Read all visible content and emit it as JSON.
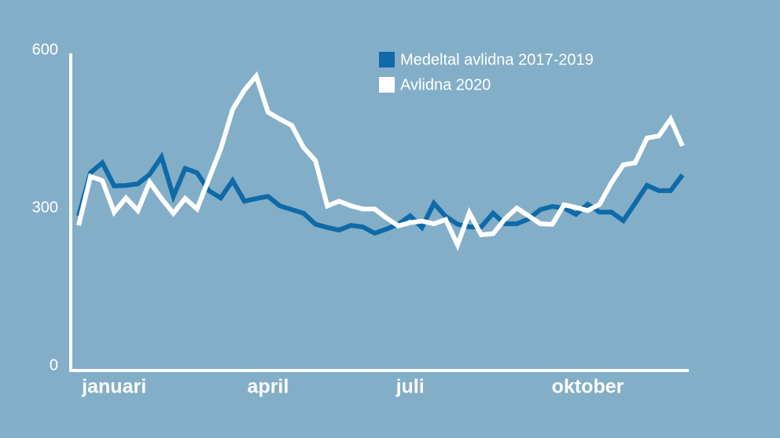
{
  "chart_data": {
    "type": "line",
    "categories": [
      null,
      null,
      null,
      "januari",
      null,
      null,
      null,
      null,
      null,
      null,
      null,
      null,
      null,
      null,
      null,
      null,
      "april",
      null,
      null,
      null,
      null,
      null,
      null,
      null,
      null,
      null,
      null,
      null,
      "juli",
      null,
      null,
      null,
      null,
      null,
      null,
      null,
      null,
      null,
      null,
      null,
      null,
      null,
      null,
      "oktober",
      null,
      null,
      null,
      null,
      null,
      null,
      null,
      null
    ],
    "series": [
      {
        "name": "Medeltal avlidna 2017-2019",
        "color": "#0e6aa8",
        "values": [
          294,
          376,
          395,
          351,
          352,
          355,
          373,
          406,
          331,
          384,
          376,
          342,
          328,
          361,
          322,
          327,
          331,
          313,
          306,
          299,
          278,
          272,
          267,
          276,
          273,
          261,
          269,
          278,
          294,
          272,
          318,
          293,
          278,
          273,
          273,
          299,
          279,
          279,
          288,
          306,
          312,
          309,
          297,
          316,
          301,
          301,
          285,
          318,
          352,
          342,
          342,
          372
        ]
      },
      {
        "name": "Avlidna 2020",
        "color": "#ffffff",
        "values": [
          276,
          369,
          361,
          301,
          328,
          304,
          358,
          327,
          299,
          327,
          307,
          364,
          421,
          496,
          533,
          560,
          491,
          478,
          466,
          424,
          399,
          313,
          322,
          313,
          307,
          307,
          290,
          275,
          281,
          284,
          279,
          287,
          239,
          300,
          258,
          260,
          288,
          309,
          294,
          279,
          278,
          315,
          310,
          304,
          316,
          357,
          391,
          395,
          442,
          446,
          478,
          427
        ]
      }
    ],
    "ylim": [
      0,
      600
    ],
    "yticks": [
      0,
      300,
      600
    ],
    "grid": false,
    "legend": "top-right"
  }
}
